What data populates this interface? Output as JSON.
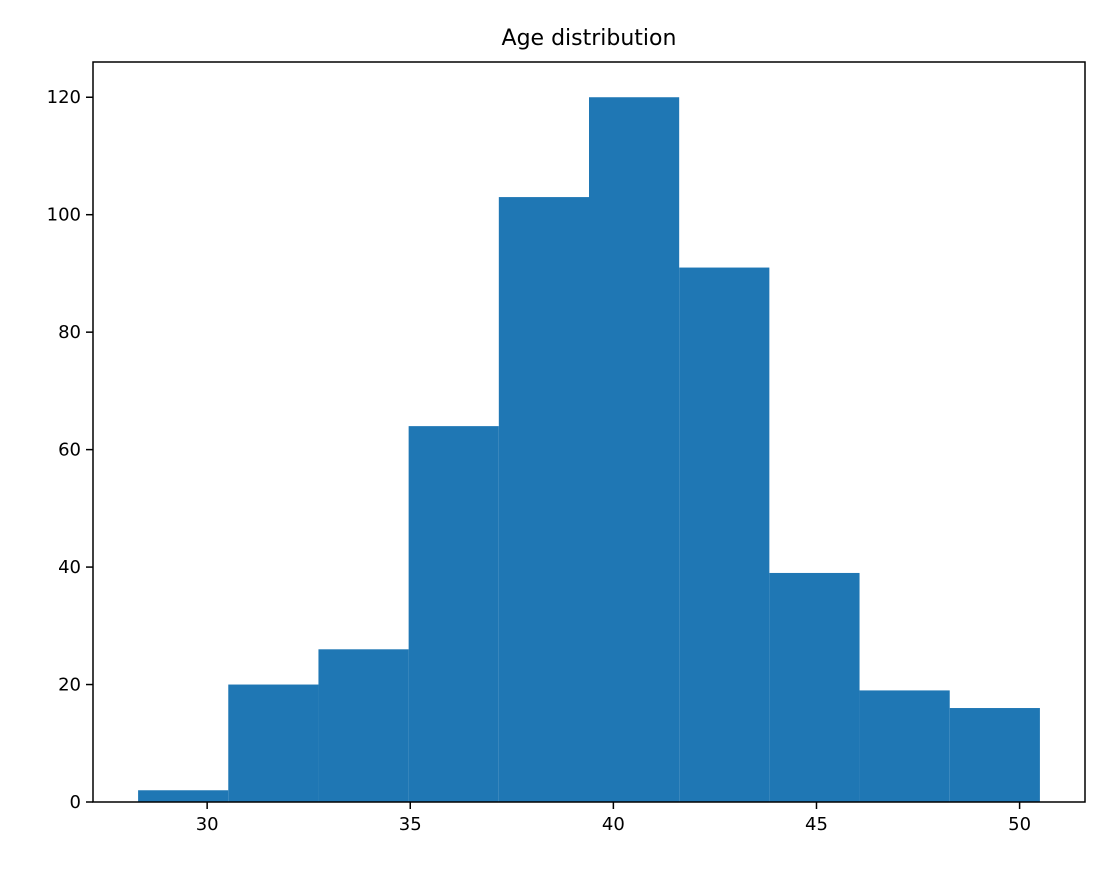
{
  "chart_data": {
    "type": "bar",
    "title": "Age distribution",
    "xlabel": "",
    "ylabel": "",
    "bin_edges": [
      28.3,
      30.52,
      32.74,
      34.96,
      37.18,
      39.4,
      41.62,
      43.84,
      46.06,
      48.28,
      50.5
    ],
    "counts": [
      2,
      20,
      26,
      64,
      103,
      120,
      91,
      39,
      19,
      16
    ],
    "xlim": [
      27.19,
      51.61
    ],
    "ylim": [
      0,
      126
    ],
    "xticks": [
      30,
      35,
      40,
      45,
      50
    ],
    "yticks": [
      0,
      20,
      40,
      60,
      80,
      100,
      120
    ],
    "grid": false,
    "colors": {
      "bar": "#1f77b4"
    }
  }
}
